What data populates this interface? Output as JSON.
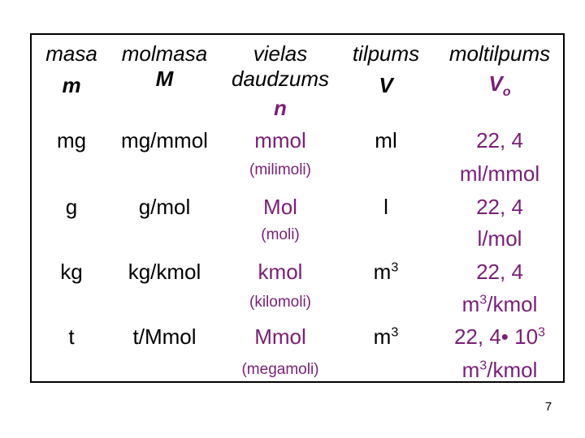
{
  "headers": {
    "mass": {
      "label": "masa",
      "symbol": "m"
    },
    "molar_mass": {
      "label": "molmasa",
      "symbol": "M"
    },
    "amount": {
      "label_line1": "vielas",
      "label_line2": "daudzums",
      "symbol": "n"
    },
    "volume": {
      "label": "tilpums",
      "symbol": "V"
    },
    "molar_volume": {
      "label": "moltilpums",
      "symbol": "V",
      "symbol_sub": "o"
    }
  },
  "rows": [
    {
      "mass": "mg",
      "molar_mass": "mg/mmol",
      "amount": "mmol",
      "amount_note": "(milimoli)",
      "volume": "ml",
      "volume_sup": "",
      "mv_line1": "22, 4",
      "mv_line2": "ml/mmol",
      "mv_line2_sup": "",
      "mv_line2_rest": ""
    },
    {
      "mass": "g",
      "molar_mass": "g/mol",
      "amount": "Mol",
      "amount_note": "(moli)",
      "volume": "l",
      "volume_sup": "",
      "mv_line1": "22, 4",
      "mv_line2": "l/mol",
      "mv_line2_sup": "",
      "mv_line2_rest": ""
    },
    {
      "mass": "kg",
      "molar_mass": "kg/kmol",
      "amount": "kmol",
      "amount_note": "(kilomoli)",
      "volume": "m",
      "volume_sup": "3",
      "mv_line1": "22, 4",
      "mv_line2": "m",
      "mv_line2_sup": "3",
      "mv_line2_rest": "/kmol"
    },
    {
      "mass": "t",
      "molar_mass": "t/Mmol",
      "amount": "Mmol",
      "amount_note": "(megamoli)",
      "volume": "m",
      "volume_sup": "3",
      "mv_line1": "22, 4• 10",
      "mv_line1_sup": "3",
      "mv_line2": "m",
      "mv_line2_sup": "3",
      "mv_line2_rest": "/kmol"
    }
  ],
  "page_number": "7",
  "colors": {
    "accent": "#7a1e78"
  }
}
